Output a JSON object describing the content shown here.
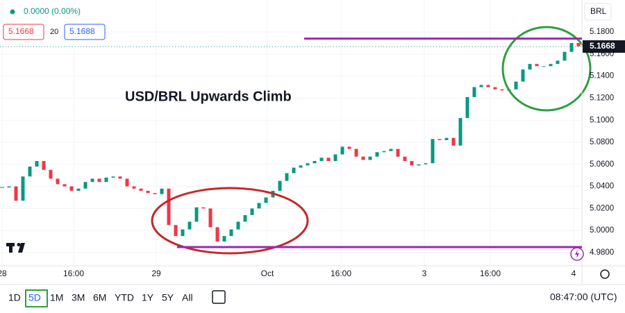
{
  "chart_data": {
    "type": "candlestick",
    "title": "USD/BRL Upwards Climb",
    "values": [
      5.039,
      5.04,
      5.027,
      5.049,
      5.058,
      5.063,
      5.055,
      5.047,
      5.042,
      5.04,
      5.036,
      5.038,
      5.044,
      5.047,
      5.044,
      5.048,
      5.049,
      5.047,
      5.04,
      5.038,
      5.036,
      5.034,
      5.033,
      5.038,
      5.005,
      4.995,
      5.001,
      5.008,
      5.021,
      5.02,
      5.003,
      4.99,
      4.995,
      5.001,
      5.008,
      5.014,
      5.02,
      5.025,
      5.03,
      5.036,
      5.045,
      5.052,
      5.057,
      5.059,
      5.061,
      5.063,
      5.066,
      5.063,
      5.069,
      5.076,
      5.074,
      5.067,
      5.064,
      5.067,
      5.071,
      5.072,
      5.074,
      5.067,
      5.063,
      5.059,
      5.06,
      5.061,
      5.083,
      5.082,
      5.084,
      5.077,
      5.102,
      5.121,
      5.13,
      5.132,
      5.13,
      5.128,
      5.127,
      5.128,
      5.135,
      5.146,
      5.151,
      5.149,
      5.149,
      5.151,
      5.154,
      5.162,
      5.17,
      5.167
    ],
    "up_color": "#089981",
    "down_color": "#f23645",
    "xlim": [
      -0.3,
      83.5
    ],
    "xticks": [
      {
        "value": 0,
        "label": "28"
      },
      {
        "value": 10.3,
        "label": "16:00"
      },
      {
        "value": 22.2,
        "label": "29"
      },
      {
        "value": 38.2,
        "label": "Oct"
      },
      {
        "value": 48.8,
        "label": "16:00"
      },
      {
        "value": 60.8,
        "label": "3"
      },
      {
        "value": 70.3,
        "label": "16:00"
      },
      {
        "value": 82.3,
        "label": "4"
      }
    ],
    "ylim": [
      4.968,
      5.209
    ],
    "yticks": [
      {
        "value": 4.98,
        "label": "4.9800"
      },
      {
        "value": 5.0,
        "label": "5.0000"
      },
      {
        "value": 5.02,
        "label": "5.0200"
      },
      {
        "value": 5.04,
        "label": "5.0400"
      },
      {
        "value": 5.06,
        "label": "5.0600"
      },
      {
        "value": 5.08,
        "label": "5.0800"
      },
      {
        "value": 5.1,
        "label": "5.1000"
      },
      {
        "value": 5.12,
        "label": "5.1200"
      },
      {
        "value": 5.14,
        "label": "5.1400"
      },
      {
        "value": 5.16,
        "label": "5.1600"
      },
      {
        "value": 5.18,
        "label": "5.1800"
      }
    ],
    "last_price": 5.1668,
    "levels": [
      {
        "value": 5.174,
        "start_x": 43.5,
        "color": "#9c27b0"
      },
      {
        "value": 4.985,
        "start_x": 25.2,
        "color": "#9c27b0"
      }
    ],
    "currency": "BRL"
  },
  "header": {
    "change": "0.0000 (0.00%)",
    "bid": "5.1668",
    "spread": "20",
    "ask": "5.1688"
  },
  "toolbar": {
    "ranges": [
      "1D",
      "5D",
      "1M",
      "3M",
      "6M",
      "YTD",
      "1Y",
      "5Y",
      "All"
    ],
    "selected": 1,
    "time": "08:47:00 (UTC)"
  }
}
